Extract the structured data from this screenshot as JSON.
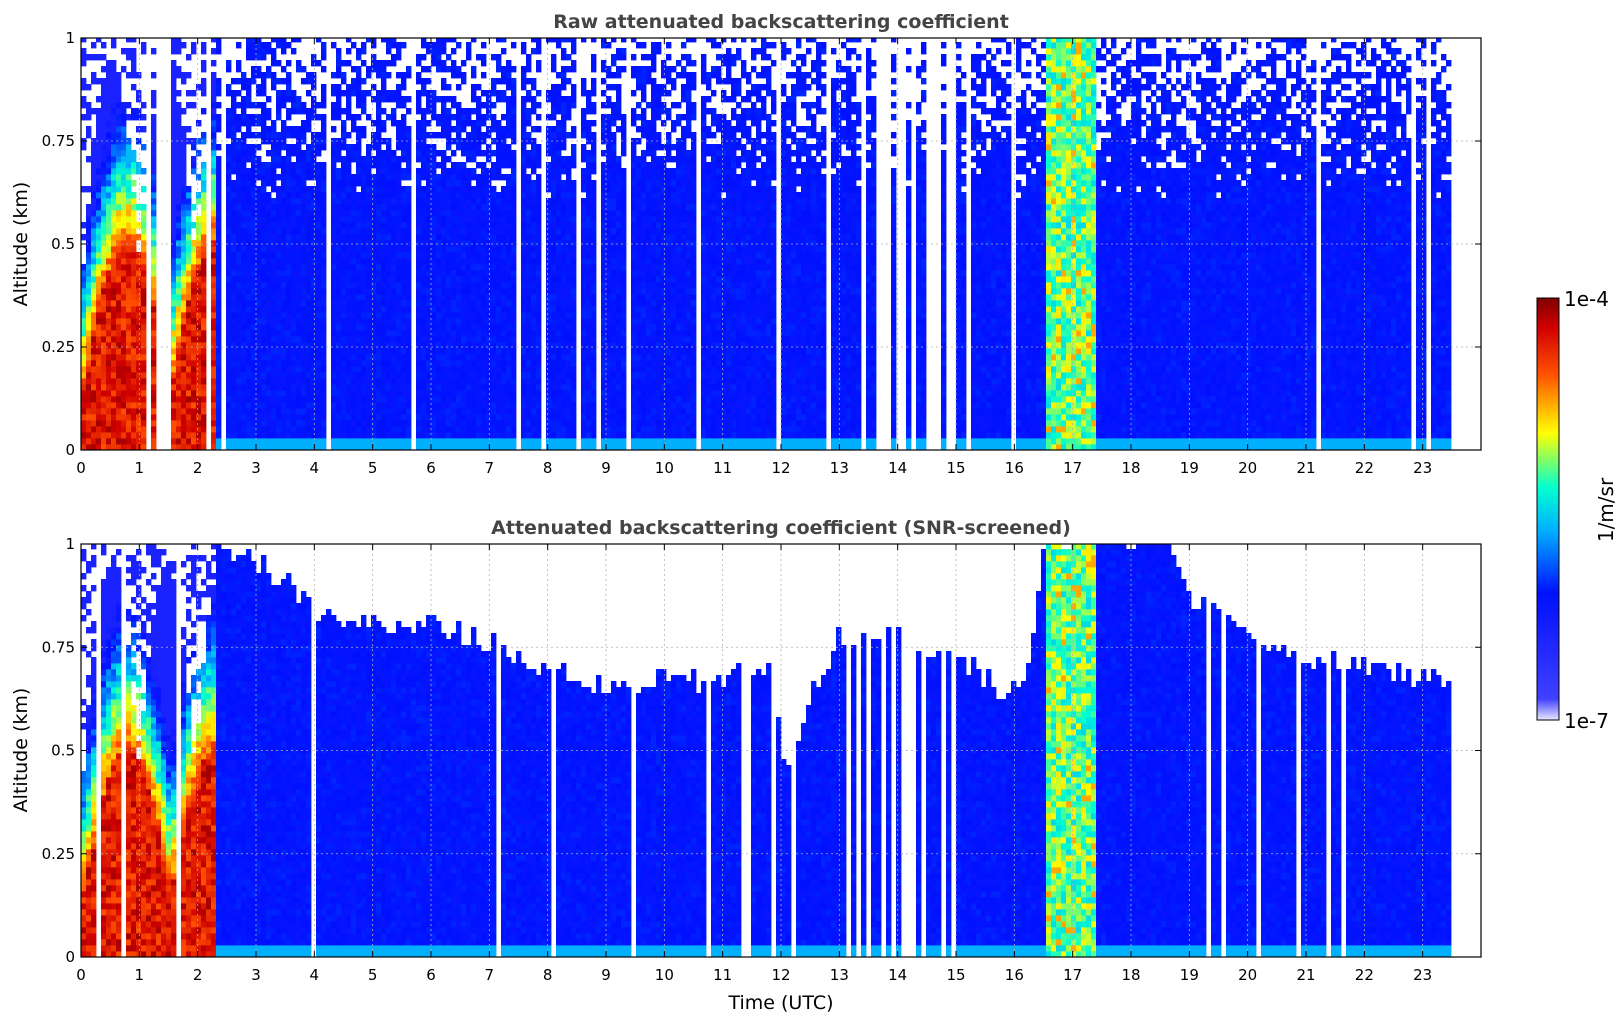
{
  "chart_data": [
    {
      "type": "heatmap",
      "title": "Raw attenuated backscattering coefficient",
      "xlabel": "",
      "ylabel": "Altitude (km)",
      "xlim": [
        0,
        24
      ],
      "ylim": [
        0,
        1
      ],
      "x_ticks": [
        "0",
        "1",
        "2",
        "3",
        "4",
        "5",
        "6",
        "7",
        "8",
        "9",
        "10",
        "11",
        "12",
        "13",
        "14",
        "15",
        "16",
        "17",
        "18",
        "19",
        "20",
        "21",
        "22",
        "23"
      ],
      "y_ticks": [
        "0",
        "0.25",
        "0.5",
        "0.75",
        "1"
      ],
      "grid": true,
      "data_end_hour": 23.45,
      "features": [
        {
          "hours": [
            0.0,
            2.3
          ],
          "description": "strong signal below 0.5 km, values near 1e-4"
        },
        {
          "hours": [
            2.3,
            16.5
          ],
          "description": "weak background signal, noisy above 0.6 km"
        },
        {
          "hours": [
            13.3,
            15.0
          ],
          "description": "frequent data gaps"
        },
        {
          "hours": [
            16.5,
            17.4
          ],
          "description": "strong column signal up to 1 km"
        },
        {
          "hours": [
            17.4,
            23.45
          ],
          "description": "weak background signal"
        }
      ]
    },
    {
      "type": "heatmap",
      "title": "Attenuated backscattering coefficient (SNR-screened)",
      "xlabel": "Time (UTC)",
      "ylabel": "Altitude (km)",
      "xlim": [
        0,
        24
      ],
      "ylim": [
        0,
        1
      ],
      "x_ticks": [
        "0",
        "1",
        "2",
        "3",
        "4",
        "5",
        "6",
        "7",
        "8",
        "9",
        "10",
        "11",
        "12",
        "13",
        "14",
        "15",
        "16",
        "17",
        "18",
        "19",
        "20",
        "21",
        "22",
        "23"
      ],
      "y_ticks": [
        "0",
        "0.25",
        "0.5",
        "0.75",
        "1"
      ],
      "grid": true,
      "data_end_hour": 23.45,
      "screen_top_km": [
        [
          0,
          1.0
        ],
        [
          2.3,
          1.0
        ],
        [
          3.0,
          0.95
        ],
        [
          4.3,
          0.8
        ],
        [
          5.5,
          0.8
        ],
        [
          6.5,
          0.78
        ],
        [
          7.5,
          0.72
        ],
        [
          8.5,
          0.66
        ],
        [
          10.0,
          0.66
        ],
        [
          11.0,
          0.66
        ],
        [
          11.8,
          0.7
        ],
        [
          12.0,
          0.45
        ],
        [
          12.6,
          0.66
        ],
        [
          13.0,
          0.78
        ],
        [
          14.0,
          0.78
        ],
        [
          15.0,
          0.72
        ],
        [
          15.8,
          0.64
        ],
        [
          16.2,
          0.7
        ],
        [
          16.5,
          1.0
        ],
        [
          18.6,
          1.0
        ],
        [
          19.0,
          0.85
        ],
        [
          20.0,
          0.78
        ],
        [
          21.0,
          0.72
        ],
        [
          23.45,
          0.66
        ]
      ]
    }
  ],
  "colorbar": {
    "label": "1/m/sr",
    "max_label": "1e-4",
    "min_label": "1e-7",
    "scale": "log",
    "range": [
      1e-07,
      0.0001
    ],
    "colors": [
      "#e8e8ff",
      "#0000ff",
      "#00d0ff",
      "#ffff00",
      "#ff0000",
      "#800000"
    ]
  }
}
